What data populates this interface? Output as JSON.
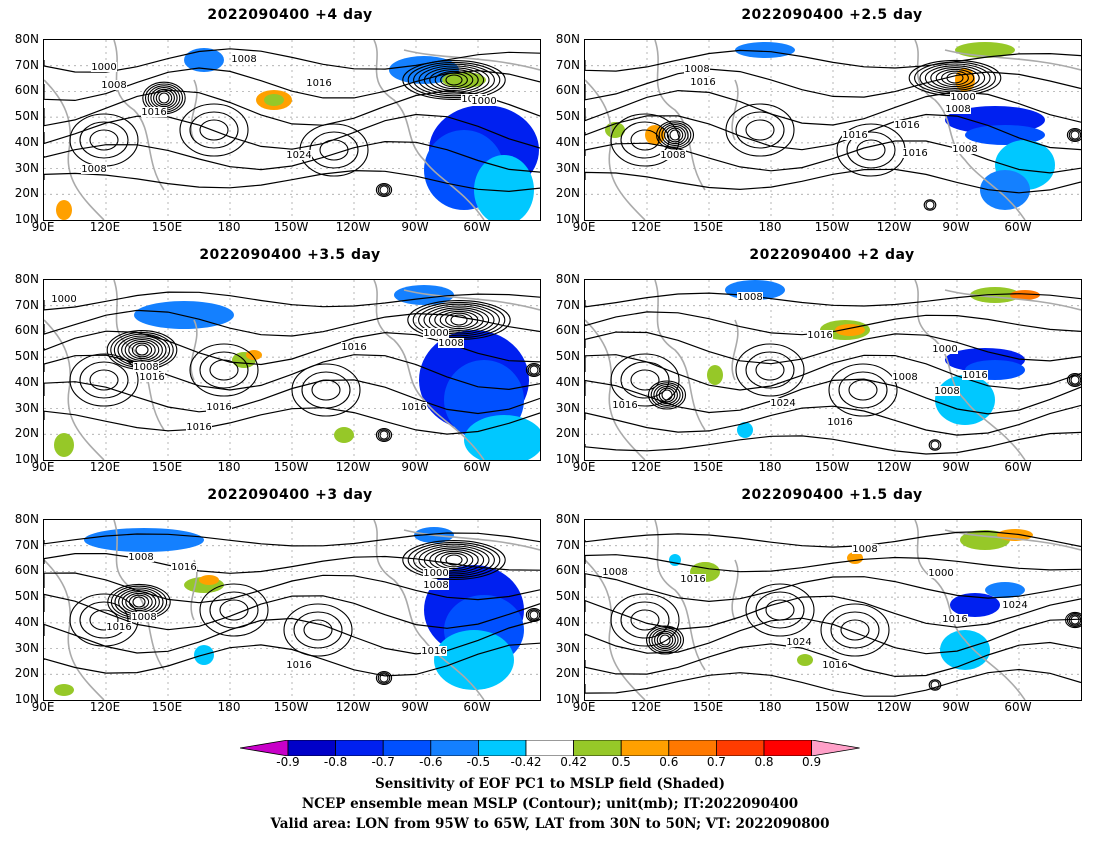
{
  "panels": [
    {
      "title": "2022090400  +4 day",
      "labels": [
        "1000",
        "1008",
        "1008",
        "1016",
        "1016",
        "1016",
        "1024",
        "1008",
        "1000"
      ]
    },
    {
      "title": "2022090400  +2.5 day",
      "labels": [
        "1008",
        "1016",
        "1008",
        "1000",
        "1008",
        "1016",
        "1016",
        "1008",
        "1016"
      ]
    },
    {
      "title": "2022090400  +3.5 day",
      "labels": [
        "1000",
        "1008",
        "1016",
        "1016",
        "1016",
        "1016",
        "1000",
        "1008",
        "1016"
      ]
    },
    {
      "title": "2022090400  +2 day",
      "labels": [
        "1008",
        "1016",
        "1000",
        "1008",
        "1008",
        "1016",
        "1024",
        "1016",
        "1016"
      ]
    },
    {
      "title": "2022090400  +3 day",
      "labels": [
        "1008",
        "1016",
        "1008",
        "1016",
        "1016",
        "1000",
        "1008",
        "1016"
      ]
    },
    {
      "title": "2022090400  +1.5 day",
      "labels": [
        "1008",
        "1016",
        "1008",
        "1000",
        "1024",
        "1016",
        "1024",
        "1016"
      ]
    }
  ],
  "lat_labels": [
    "80N",
    "70N",
    "60N",
    "50N",
    "40N",
    "30N",
    "20N",
    "10N"
  ],
  "lon_labels": [
    "90E",
    "120E",
    "150E",
    "180",
    "150W",
    "120W",
    "90W",
    "60W"
  ],
  "colorbar": {
    "ticks": [
      "-0.9",
      "-0.8",
      "-0.7",
      "-0.6",
      "-0.5",
      "-0.42",
      "0.42",
      "0.5",
      "0.6",
      "0.7",
      "0.8",
      "0.9"
    ],
    "colors": [
      "#c800c8",
      "#0000c8",
      "#0020f0",
      "#0050ff",
      "#1480ff",
      "#00c8ff",
      "#ffffff",
      "#96c828",
      "#ffa000",
      "#ff7800",
      "#ff3c00",
      "#ff0000",
      "#ffa0c8"
    ]
  },
  "caption": {
    "line1": "Sensitivity of EOF PC1 to MSLP field (Shaded)",
    "line2": "NCEP ensemble mean MSLP (Contour); unit(mb); IT:2022090400",
    "line3": "Valid area: LON from 95W to 65W, LAT from 30N to 50N; VT: 2022090800"
  }
}
